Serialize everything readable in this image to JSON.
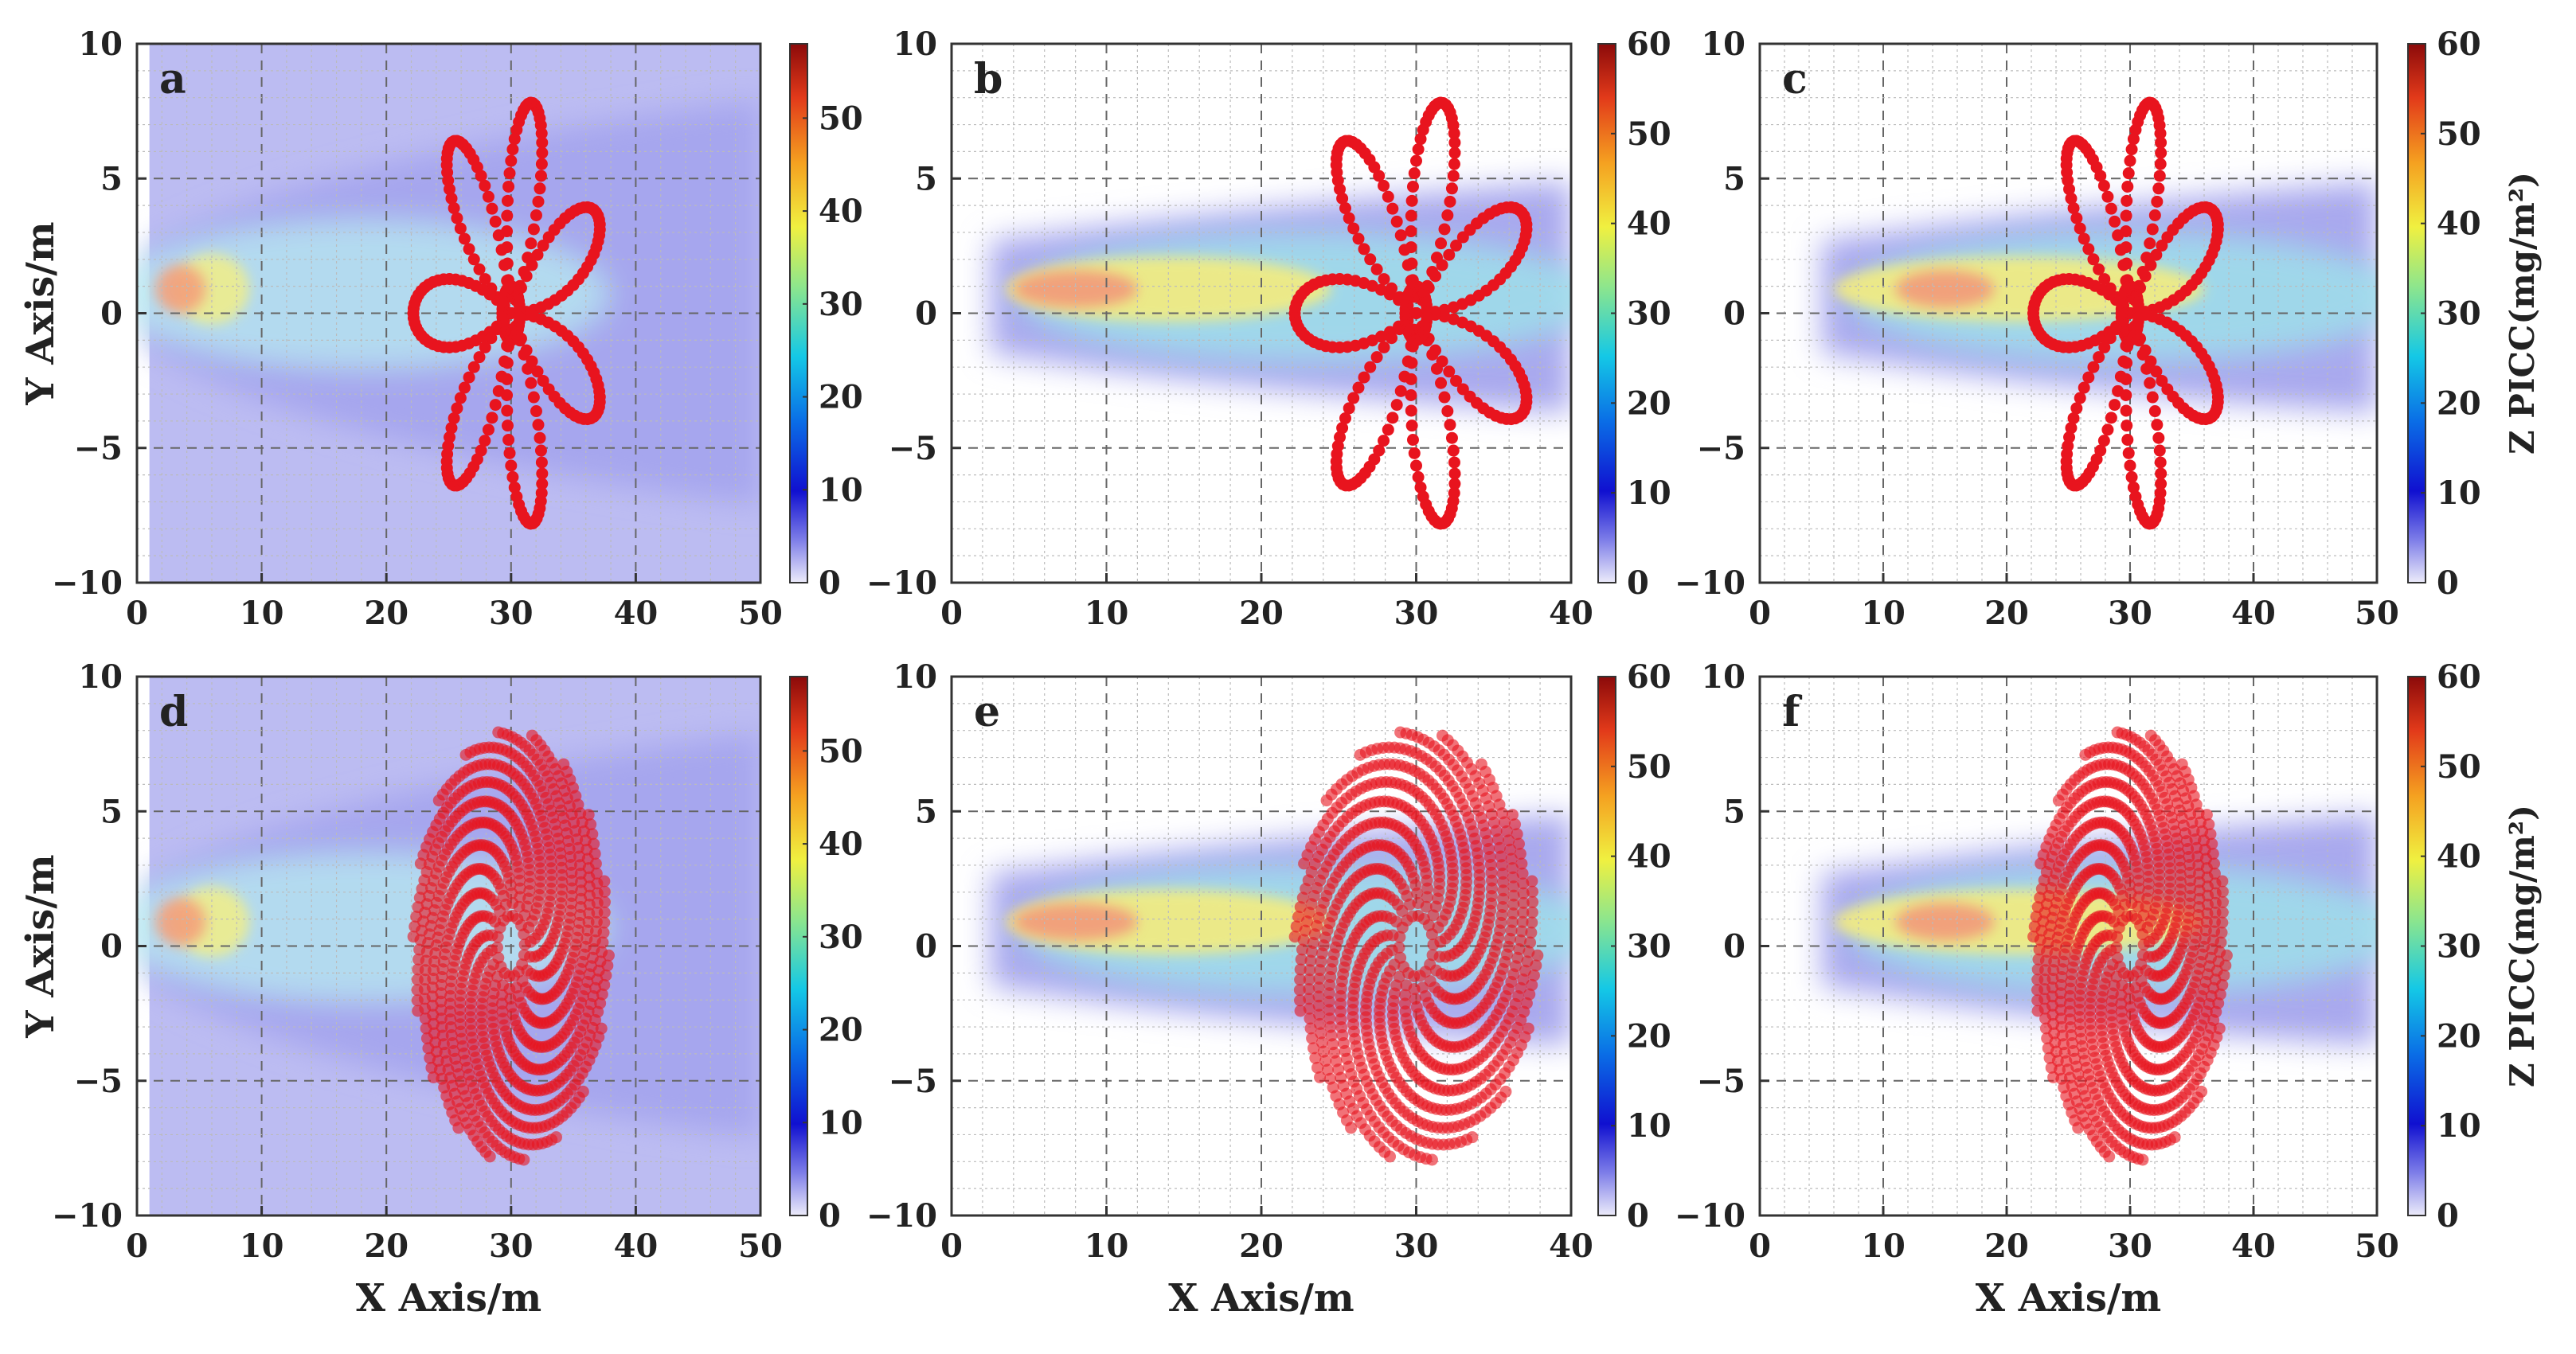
{
  "chart_data": [
    {
      "id": "a",
      "type": "heatmap",
      "panel_label": "a",
      "xlim": [
        0,
        50
      ],
      "ylim": [
        -10,
        10
      ],
      "xticks": [
        "0",
        "10",
        "20",
        "30",
        "40",
        "50"
      ],
      "yticks": [
        "10",
        "5",
        "0",
        "−5",
        "−10"
      ],
      "ylabel": "Y Axis/m",
      "xlabel": "",
      "colorbar": {
        "ticks": [
          "0",
          "10",
          "20",
          "30",
          "40",
          "50"
        ],
        "max": 58,
        "label": ""
      },
      "plume": {
        "x_start": 1,
        "y_center": 0.9,
        "peak_x": 3.5,
        "peak_value": 48,
        "fills_background": true
      },
      "points": {
        "pattern": "flower",
        "center": [
          30,
          0
        ],
        "petals": 7,
        "radius": 8,
        "count": 280,
        "opacity": 1.0
      }
    },
    {
      "id": "b",
      "type": "heatmap",
      "panel_label": "b",
      "xlim": [
        0,
        40
      ],
      "ylim": [
        -10,
        10
      ],
      "xticks": [
        "0",
        "10",
        "20",
        "30",
        "40"
      ],
      "yticks": [
        "10",
        "5",
        "0",
        "−5",
        "−10"
      ],
      "ylabel": "",
      "xlabel": "",
      "colorbar": {
        "ticks": [
          "0",
          "10",
          "20",
          "30",
          "40",
          "50",
          "60"
        ],
        "max": 60,
        "label": ""
      },
      "plume": {
        "x_start": 2.5,
        "y_center": 0.9,
        "peak_x": 8,
        "peak_value": 50,
        "fills_background": false
      },
      "points": {
        "pattern": "flower",
        "center": [
          30,
          0
        ],
        "petals": 7,
        "radius": 8,
        "count": 280,
        "opacity": 1.0
      }
    },
    {
      "id": "c",
      "type": "heatmap",
      "panel_label": "c",
      "xlim": [
        0,
        50
      ],
      "ylim": [
        -10,
        10
      ],
      "xticks": [
        "0",
        "10",
        "20",
        "30",
        "40",
        "50"
      ],
      "yticks": [
        "10",
        "5",
        "0",
        "−5",
        "−10"
      ],
      "ylabel": "",
      "xlabel": "",
      "colorbar": {
        "ticks": [
          "0",
          "10",
          "20",
          "30",
          "40",
          "50",
          "60"
        ],
        "max": 60,
        "label": "Z PICC(mg/m²)"
      },
      "plume": {
        "x_start": 5,
        "y_center": 0.9,
        "peak_x": 15,
        "peak_value": 50,
        "fills_background": false
      },
      "points": {
        "pattern": "flower",
        "center": [
          30,
          0
        ],
        "petals": 7,
        "radius": 8,
        "count": 280,
        "opacity": 1.0
      }
    },
    {
      "id": "d",
      "type": "heatmap",
      "panel_label": "d",
      "xlim": [
        0,
        50
      ],
      "ylim": [
        -10,
        10
      ],
      "xticks": [
        "0",
        "10",
        "20",
        "30",
        "40",
        "50"
      ],
      "yticks": [
        "10",
        "5",
        "0",
        "−5",
        "−10"
      ],
      "ylabel": "Y Axis/m",
      "xlabel": "X Axis/m",
      "colorbar": {
        "ticks": [
          "0",
          "10",
          "20",
          "30",
          "40",
          "50"
        ],
        "max": 58,
        "label": ""
      },
      "plume": {
        "x_start": 1,
        "y_center": 0.9,
        "peak_x": 3.5,
        "peak_value": 48,
        "fills_background": true
      },
      "points": {
        "pattern": "spiral",
        "center": [
          30,
          0
        ],
        "arms": 18,
        "radius": 8,
        "count": 900,
        "opacity": 0.6
      }
    },
    {
      "id": "e",
      "type": "heatmap",
      "panel_label": "e",
      "xlim": [
        0,
        40
      ],
      "ylim": [
        -10,
        10
      ],
      "xticks": [
        "0",
        "10",
        "20",
        "30",
        "40"
      ],
      "yticks": [
        "10",
        "5",
        "0",
        "−5",
        "−10"
      ],
      "ylabel": "",
      "xlabel": "X Axis/m",
      "colorbar": {
        "ticks": [
          "0",
          "10",
          "20",
          "30",
          "40",
          "50",
          "60"
        ],
        "max": 60,
        "label": ""
      },
      "plume": {
        "x_start": 2.5,
        "y_center": 0.9,
        "peak_x": 8,
        "peak_value": 50,
        "fills_background": false
      },
      "points": {
        "pattern": "spiral",
        "center": [
          30,
          0
        ],
        "arms": 18,
        "radius": 8,
        "count": 900,
        "opacity": 0.6
      }
    },
    {
      "id": "f",
      "type": "heatmap",
      "panel_label": "f",
      "xlim": [
        0,
        50
      ],
      "ylim": [
        -10,
        10
      ],
      "xticks": [
        "0",
        "10",
        "20",
        "30",
        "40",
        "50"
      ],
      "yticks": [
        "10",
        "5",
        "0",
        "−5",
        "−10"
      ],
      "ylabel": "",
      "xlabel": "X Axis/m",
      "colorbar": {
        "ticks": [
          "0",
          "10",
          "20",
          "30",
          "40",
          "50",
          "60"
        ],
        "max": 60,
        "label": "Z PICC(mg/m²)"
      },
      "plume": {
        "x_start": 5,
        "y_center": 0.9,
        "peak_x": 15,
        "peak_value": 50,
        "fills_background": false
      },
      "points": {
        "pattern": "spiral",
        "center": [
          30,
          0
        ],
        "arms": 18,
        "radius": 8,
        "count": 900,
        "opacity": 0.6
      }
    }
  ]
}
